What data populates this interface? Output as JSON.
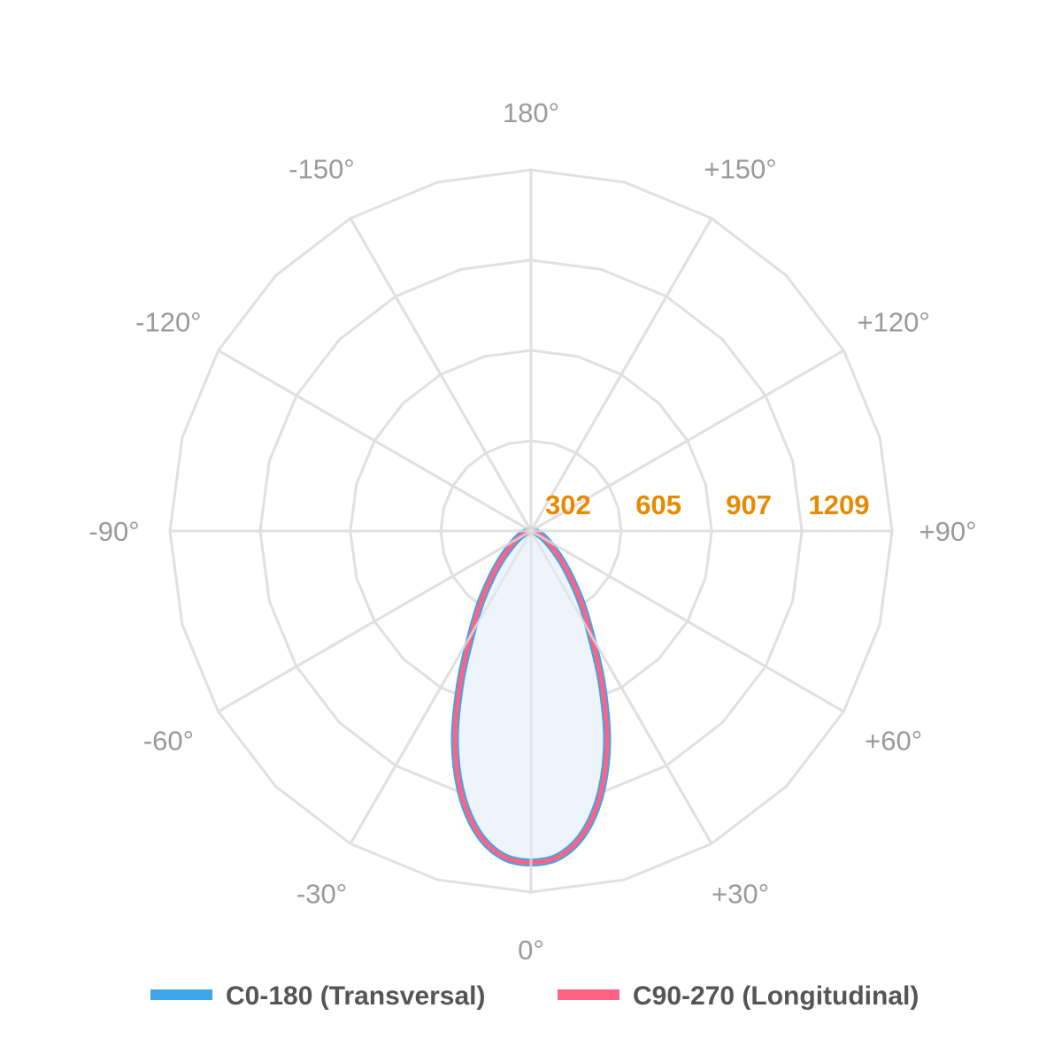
{
  "chart_data": {
    "type": "polar-line",
    "angle_labels": [
      {
        "angle": 0,
        "label": "0°"
      },
      {
        "angle": 30,
        "label": "+30°"
      },
      {
        "angle": 60,
        "label": "+60°"
      },
      {
        "angle": 90,
        "label": "+90°"
      },
      {
        "angle": 120,
        "label": "+120°"
      },
      {
        "angle": 150,
        "label": "+150°"
      },
      {
        "angle": 180,
        "label": "180°"
      },
      {
        "angle": -150,
        "label": "-150°"
      },
      {
        "angle": -120,
        "label": "-120°"
      },
      {
        "angle": -90,
        "label": "-90°"
      },
      {
        "angle": -60,
        "label": "-60°"
      },
      {
        "angle": -30,
        "label": "-30°"
      }
    ],
    "grid_step_deg": 15,
    "radial_max": 1209,
    "radial_ticks": [
      302,
      605,
      907,
      1209
    ],
    "radial_tick_color": "#E88A00",
    "grid_color": "#E0E0E0",
    "angle_label_color": "#9A9A9A",
    "series": [
      {
        "name": "C0-180 (Transversal)",
        "color": "#3DA5E8",
        "fill": "#EDF4FB",
        "angles": [
          -90,
          -80,
          -70,
          -60,
          -50,
          -45,
          -40,
          -35,
          -30,
          -25,
          -20,
          -15,
          -10,
          -5,
          0,
          5,
          10,
          15,
          20,
          25,
          30,
          35,
          40,
          45,
          50,
          60,
          70,
          80,
          90
        ],
        "values": [
          0,
          10,
          28,
          55,
          105,
          150,
          210,
          295,
          400,
          560,
          745,
          905,
          1025,
          1093,
          1110,
          1093,
          1025,
          905,
          745,
          560,
          400,
          295,
          210,
          150,
          105,
          55,
          28,
          10,
          0
        ]
      },
      {
        "name": "C90-270 (Longitudinal)",
        "color": "#FF6384",
        "angles": [
          -90,
          -80,
          -70,
          -60,
          -50,
          -45,
          -40,
          -35,
          -30,
          -25,
          -20,
          -15,
          -10,
          -5,
          0,
          5,
          10,
          15,
          20,
          25,
          30,
          35,
          40,
          45,
          50,
          60,
          70,
          80,
          90
        ],
        "values": [
          0,
          10,
          28,
          55,
          105,
          150,
          210,
          295,
          400,
          560,
          745,
          905,
          1025,
          1093,
          1110,
          1093,
          1025,
          905,
          745,
          560,
          400,
          295,
          210,
          150,
          105,
          55,
          28,
          10,
          0
        ]
      }
    ],
    "legend": {
      "position": "bottom"
    }
  }
}
